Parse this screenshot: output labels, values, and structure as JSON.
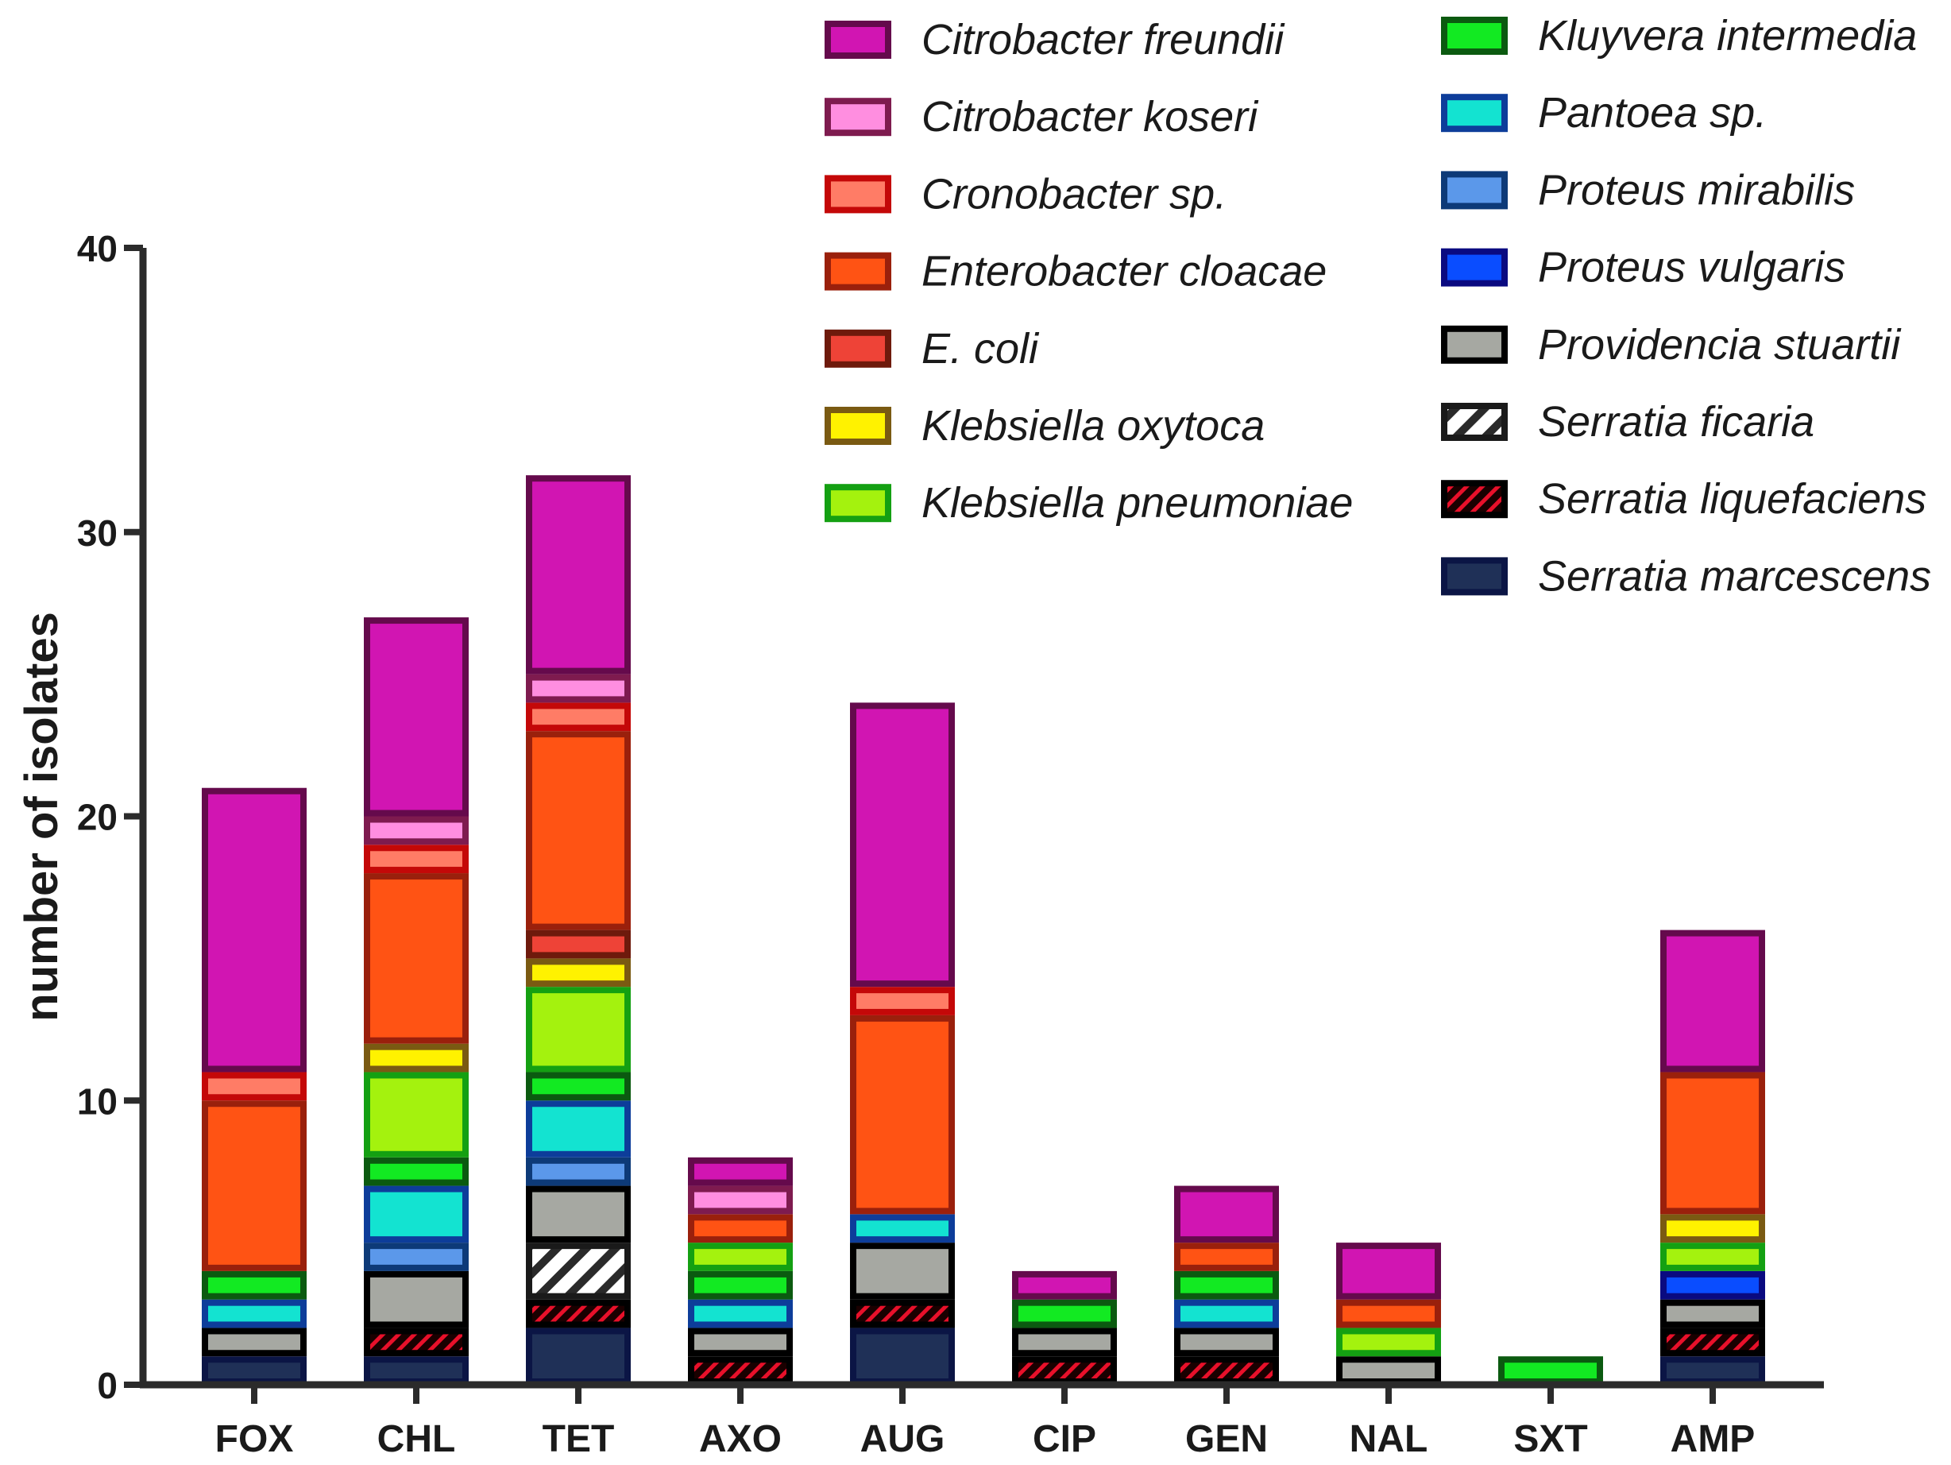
{
  "chart_data": {
    "type": "bar",
    "stacked": true,
    "title": "",
    "xlabel": "",
    "ylabel": "number of isolates",
    "ylim": [
      0,
      40
    ],
    "yticks": [
      0,
      10,
      20,
      30,
      40
    ],
    "categories": [
      "FOX",
      "CHL",
      "TET",
      "AXO",
      "AUG",
      "CIP",
      "GEN",
      "NAL",
      "SXT",
      "AMP"
    ],
    "legend_position": "top-right",
    "series": [
      {
        "name": "Serratia marcescens",
        "fill": "#1f3057",
        "stroke": "#0b1545",
        "pattern": "solid",
        "values": [
          1,
          1,
          2,
          0,
          2,
          0,
          0,
          0,
          0,
          1
        ]
      },
      {
        "name": "Serratia liquefaciens",
        "fill": "#1a0000",
        "stroke": "#000000",
        "pattern": "red-hatch",
        "values": [
          0,
          1,
          1,
          1,
          1,
          1,
          1,
          0,
          0,
          1
        ]
      },
      {
        "name": "Serratia ficaria",
        "fill": "#ffffff",
        "stroke": "#1a1a1a",
        "pattern": "gray-hatch",
        "values": [
          0,
          0,
          2,
          0,
          0,
          0,
          0,
          0,
          0,
          0
        ]
      },
      {
        "name": "Providencia stuartii",
        "fill": "#a6a8a2",
        "stroke": "#000000",
        "pattern": "solid",
        "values": [
          1,
          2,
          2,
          1,
          2,
          1,
          1,
          1,
          0,
          1
        ]
      },
      {
        "name": "Proteus vulgaris",
        "fill": "#0a4dff",
        "stroke": "#0a0a80",
        "pattern": "solid",
        "values": [
          0,
          0,
          0,
          0,
          0,
          0,
          0,
          0,
          0,
          1
        ]
      },
      {
        "name": "Proteus mirabilis",
        "fill": "#5b98ea",
        "stroke": "#0d3a78",
        "pattern": "solid",
        "values": [
          0,
          1,
          1,
          0,
          0,
          0,
          0,
          0,
          0,
          0
        ]
      },
      {
        "name": "Pantoea sp.",
        "fill": "#13e3d1",
        "stroke": "#0d3d9a",
        "pattern": "solid",
        "values": [
          1,
          2,
          2,
          1,
          1,
          0,
          1,
          0,
          0,
          0
        ]
      },
      {
        "name": "Kluyvera intermedia",
        "fill": "#12ea22",
        "stroke": "#0b5a10",
        "pattern": "solid",
        "values": [
          1,
          1,
          1,
          1,
          0,
          1,
          1,
          0,
          1,
          0
        ]
      },
      {
        "name": "Klebsiella pneumoniae",
        "fill": "#a4f20e",
        "stroke": "#14a012",
        "pattern": "solid",
        "values": [
          0,
          3,
          3,
          1,
          0,
          0,
          0,
          1,
          0,
          1
        ]
      },
      {
        "name": "Klebsiella oxytoca",
        "fill": "#fff200",
        "stroke": "#7a5a12",
        "pattern": "solid",
        "values": [
          0,
          1,
          1,
          0,
          0,
          0,
          0,
          0,
          0,
          1
        ]
      },
      {
        "name": "E. coli",
        "fill": "#ee4337",
        "stroke": "#6e1a0c",
        "pattern": "solid",
        "values": [
          0,
          0,
          1,
          0,
          0,
          0,
          0,
          0,
          0,
          0
        ]
      },
      {
        "name": "Enterobacter cloacae",
        "fill": "#ff5314",
        "stroke": "#9a200c",
        "pattern": "solid",
        "values": [
          6,
          6,
          7,
          1,
          7,
          0,
          1,
          1,
          0,
          5
        ]
      },
      {
        "name": "Cronobacter sp.",
        "fill": "#ff7c66",
        "stroke": "#c40808",
        "pattern": "solid",
        "values": [
          1,
          1,
          1,
          0,
          1,
          0,
          0,
          0,
          0,
          0
        ]
      },
      {
        "name": "Citrobacter koseri",
        "fill": "#ff8ee0",
        "stroke": "#7e1b4f",
        "pattern": "solid",
        "values": [
          0,
          1,
          1,
          1,
          0,
          0,
          0,
          0,
          0,
          0
        ]
      },
      {
        "name": "Citrobacter freundii",
        "fill": "#d115b2",
        "stroke": "#650a4c",
        "pattern": "solid",
        "values": [
          10,
          7,
          7,
          1,
          10,
          1,
          2,
          2,
          0,
          5
        ]
      }
    ],
    "legend_columns": [
      [
        "Citrobacter freundii",
        "Citrobacter koseri",
        "Cronobacter sp.",
        "Enterobacter cloacae",
        "E. coli",
        "Klebsiella oxytoca",
        "Klebsiella pneumoniae"
      ],
      [
        "Kluyvera intermedia",
        "Pantoea sp.",
        "Proteus mirabilis",
        "Proteus vulgaris",
        "Providencia stuartii",
        "Serratia ficaria",
        "Serratia liquefaciens",
        "Serratia marcescens"
      ]
    ]
  },
  "colors": {
    "axis": "#2b2b2b",
    "text": "#1a1a1a",
    "hatch_red": "#e8102a",
    "hatch_gray": "#1a1a1a"
  }
}
